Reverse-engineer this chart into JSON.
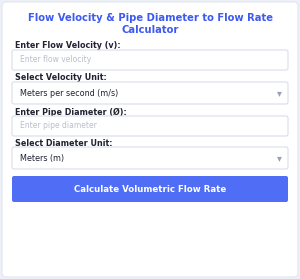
{
  "title_line1": "Flow Velocity & Pipe Diameter to Flow Rate",
  "title_line2": "Calculator",
  "title_color": "#3d5af1",
  "card_bg": "#ffffff",
  "card_edge": "#e2e6ef",
  "label1": "Enter Flow Velocity (v):",
  "placeholder1": "Enter flow velocity",
  "label2": "Select Velocity Unit:",
  "dropdown1": "Meters per second (m/s)",
  "label3": "Enter Pipe Diameter (Ø):",
  "placeholder2": "Enter pipe diameter",
  "label4": "Select Diameter Unit:",
  "dropdown2": "Meters (m)",
  "button_text": "Calculate Volumetric Flow Rate",
  "button_color": "#4f6df5",
  "button_text_color": "#ffffff",
  "label_color": "#222233",
  "placeholder_color": "#b8bfcc",
  "input_bg": "#ffffff",
  "input_border": "#d4d9e8",
  "arrow_color": "#9aa0b0",
  "outer_bg": "#edf0f7"
}
